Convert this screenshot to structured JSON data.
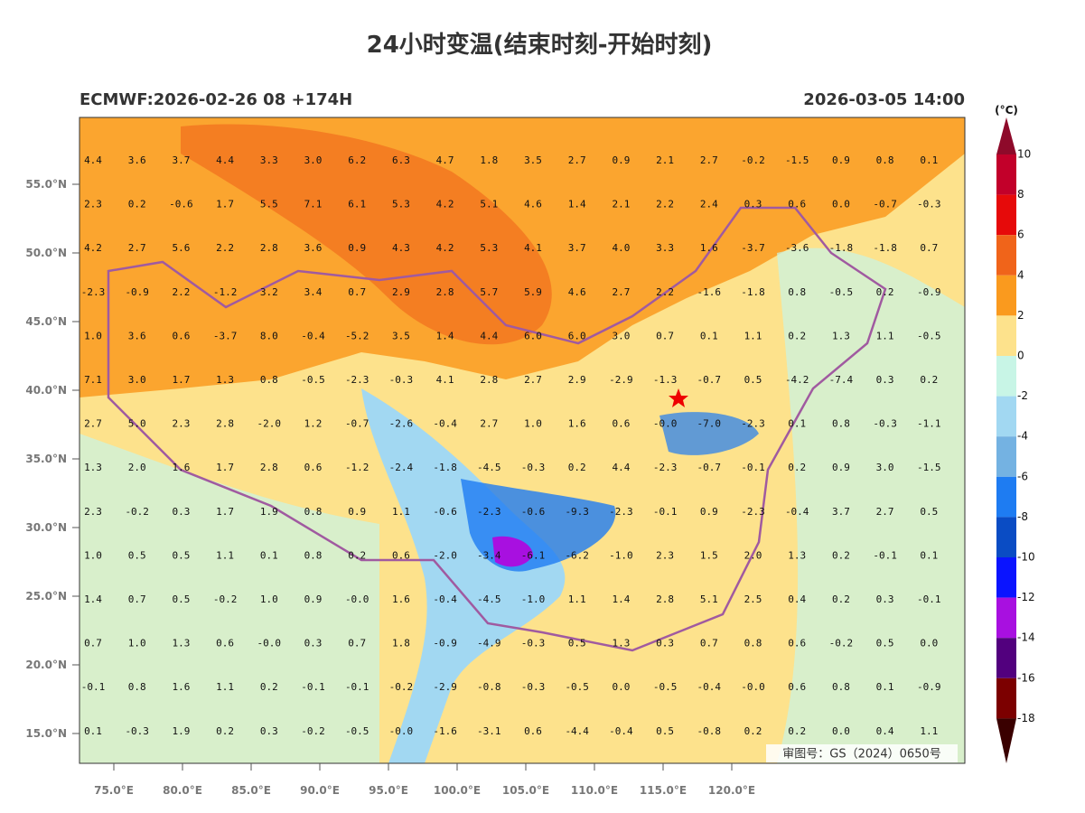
{
  "header": {
    "title": "24小时变温(结束时刻-开始时刻)",
    "left": "ECMWF:2026-02-26 08 +174H",
    "right": "2026-03-05 14:00"
  },
  "map": {
    "lat_labels": [
      "55.0°N",
      "50.0°N",
      "45.0°N",
      "40.0°N",
      "35.0°N",
      "30.0°N",
      "25.0°N",
      "20.0°N",
      "15.0°N"
    ],
    "lon_labels": [
      "75.0°E",
      "80.0°E",
      "85.0°E",
      "90.0°E",
      "95.0°E",
      "100.0°E",
      "105.0°E",
      "110.0°E",
      "115.0°E",
      "120.0°E"
    ],
    "values": [
      [
        "4.4",
        "3.6",
        "3.7",
        "4.4",
        "3.3",
        "3.0",
        "6.2",
        "6.3",
        "4.7",
        "1.8",
        "3.5",
        "2.7",
        "0.9",
        "2.1",
        "2.7",
        "-0.2",
        "-1.5",
        "0.9",
        "0.8",
        "0.1"
      ],
      [
        "2.3",
        "0.2",
        "-0.6",
        "1.7",
        "5.5",
        "7.1",
        "6.1",
        "5.3",
        "4.2",
        "5.1",
        "4.6",
        "1.4",
        "2.1",
        "2.2",
        "2.4",
        "0.3",
        "0.6",
        "0.0",
        "-0.7",
        "-0.3"
      ],
      [
        "4.2",
        "2.7",
        "5.6",
        "2.2",
        "2.8",
        "3.6",
        "0.9",
        "4.3",
        "4.2",
        "5.3",
        "4.1",
        "3.7",
        "4.0",
        "3.3",
        "1.6",
        "-3.7",
        "-3.6",
        "-1.8",
        "-1.8",
        "0.7"
      ],
      [
        "-2.3",
        "-0.9",
        "2.2",
        "-1.2",
        "3.2",
        "3.4",
        "0.7",
        "2.9",
        "2.8",
        "5.7",
        "5.9",
        "4.6",
        "2.7",
        "2.2",
        "-1.6",
        "-1.8",
        "0.8",
        "-0.5",
        "0.2",
        "-0.9"
      ],
      [
        "1.0",
        "3.6",
        "0.6",
        "-3.7",
        "8.0",
        "-0.4",
        "-5.2",
        "3.5",
        "1.4",
        "4.4",
        "6.0",
        "6.0",
        "3.0",
        "0.7",
        "0.1",
        "1.1",
        "0.2",
        "1.3",
        "1.1",
        "-0.5"
      ],
      [
        "7.1",
        "3.0",
        "1.7",
        "1.3",
        "0.8",
        "-0.5",
        "-2.3",
        "-0.3",
        "4.1",
        "2.8",
        "2.7",
        "2.9",
        "-2.9",
        "-1.3",
        "-0.7",
        "0.5",
        "-4.2",
        "-7.4",
        "0.3",
        "0.2"
      ],
      [
        "2.7",
        "5.0",
        "2.3",
        "2.8",
        "-2.0",
        "1.2",
        "-0.7",
        "-2.6",
        "-0.4",
        "2.7",
        "1.0",
        "1.6",
        "0.6",
        "-0.0",
        "-7.0",
        "-2.3",
        "0.1",
        "0.8",
        "-0.3",
        "-1.1"
      ],
      [
        "1.3",
        "2.0",
        "1.6",
        "1.7",
        "2.8",
        "0.6",
        "-1.2",
        "-2.4",
        "-1.8",
        "-4.5",
        "-0.3",
        "0.2",
        "4.4",
        "-2.3",
        "-0.7",
        "-0.1",
        "0.2",
        "0.9",
        "3.0",
        "-1.5"
      ],
      [
        "2.3",
        "-0.2",
        "0.3",
        "1.7",
        "1.9",
        "0.8",
        "0.9",
        "1.1",
        "-0.6",
        "-2.3",
        "-0.6",
        "-9.3",
        "-2.3",
        "-0.1",
        "0.9",
        "-2.3",
        "-0.4",
        "3.7",
        "2.7",
        "0.5"
      ],
      [
        "1.0",
        "0.5",
        "0.5",
        "1.1",
        "0.1",
        "0.8",
        "0.2",
        "0.6",
        "-2.0",
        "-3.4",
        "-6.1",
        "-6.2",
        "-1.0",
        "2.3",
        "1.5",
        "2.0",
        "1.3",
        "0.2",
        "-0.1",
        "0.1"
      ],
      [
        "1.4",
        "0.7",
        "0.5",
        "-0.2",
        "1.0",
        "0.9",
        "-0.0",
        "1.6",
        "-0.4",
        "-4.5",
        "-1.0",
        "1.1",
        "1.4",
        "2.8",
        "5.1",
        "2.5",
        "0.4",
        "0.2",
        "0.3",
        "-0.1"
      ],
      [
        "0.7",
        "1.0",
        "1.3",
        "0.6",
        "-0.0",
        "0.3",
        "0.7",
        "1.8",
        "-0.9",
        "-4.9",
        "-0.3",
        "0.5",
        "1.3",
        "0.3",
        "0.7",
        "0.8",
        "0.6",
        "-0.2",
        "0.5",
        "0.0"
      ],
      [
        "-0.1",
        "0.8",
        "1.6",
        "1.1",
        "0.2",
        "-0.1",
        "-0.1",
        "-0.2",
        "-2.9",
        "-0.8",
        "-0.3",
        "-0.5",
        "0.0",
        "-0.5",
        "-0.4",
        "-0.0",
        "0.6",
        "0.8",
        "0.1",
        "-0.9"
      ],
      [
        "0.1",
        "-0.3",
        "1.9",
        "0.2",
        "0.3",
        "-0.2",
        "-0.5",
        "-0.0",
        "-1.6",
        "-3.1",
        "0.6",
        "-4.4",
        "-0.4",
        "0.5",
        "-0.8",
        "0.2",
        "0.2",
        "0.0",
        "0.4",
        "1.1"
      ]
    ],
    "approval": "审图号：GS（2024）0650号"
  },
  "colorbar": {
    "unit": "(°C)",
    "levels": [
      10,
      8,
      6,
      4,
      2,
      0,
      -2,
      -4,
      -6,
      -8,
      -10,
      -12,
      -14,
      -16,
      -18
    ],
    "colors": [
      "#8e0a2a",
      "#c2002a",
      "#e60a0a",
      "#f0641a",
      "#fa9a1e",
      "#fde28c",
      "#c8f5e6",
      "#a2d8f2",
      "#74b2e2",
      "#1e7cf2",
      "#0a4cc4",
      "#0a14ff",
      "#a810e0",
      "#52007e",
      "#7c0000",
      "#3a0000"
    ]
  }
}
